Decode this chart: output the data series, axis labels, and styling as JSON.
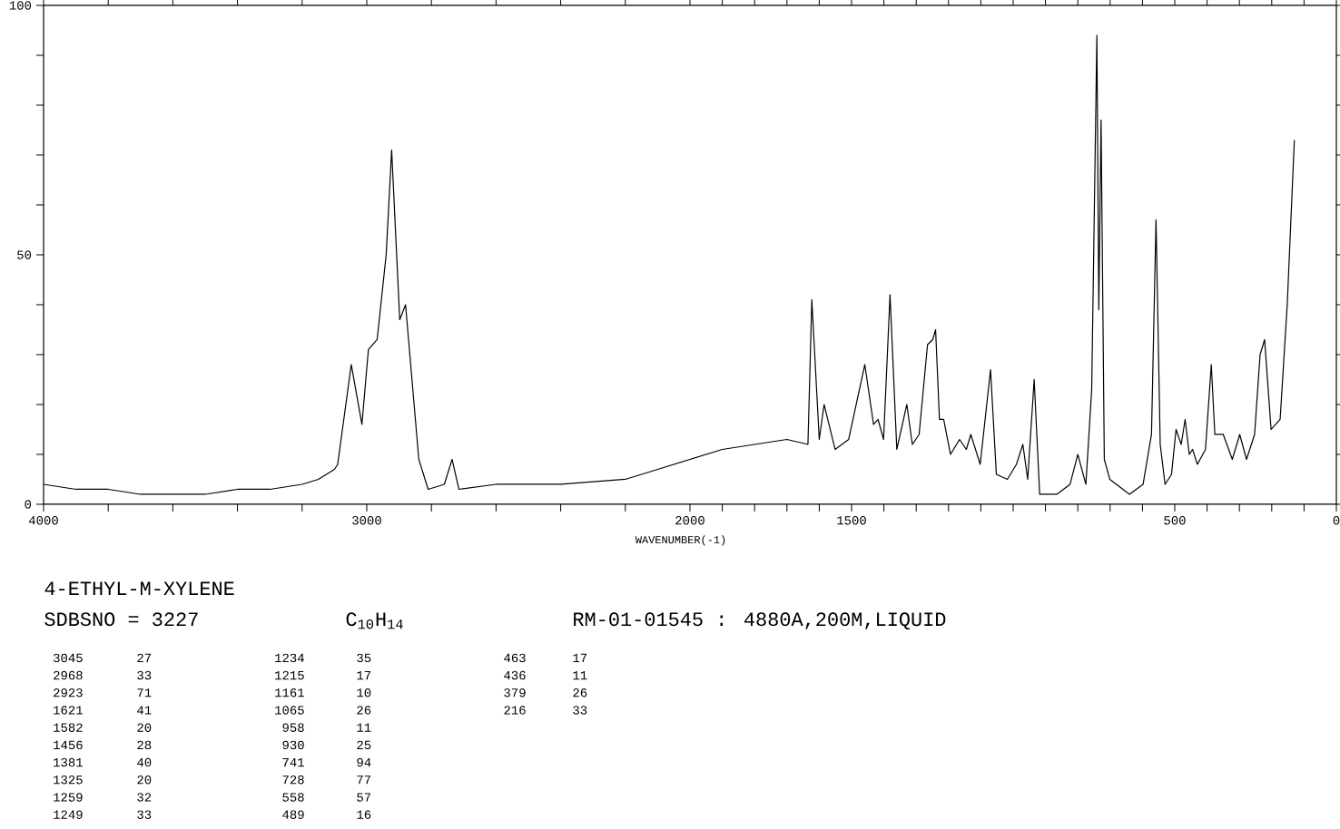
{
  "chart_data": {
    "type": "line",
    "title": "4-ETHYL-M-XYLENE",
    "subtitle": "SDBSNO = 3227",
    "xlabel": "WAVENUMBER(-1)",
    "annotations": [
      "C$_{10}$H$_{14}$",
      "RM-01-01545 : 4880A,200M,LIQUID",
      "3045",
      "27",
      "2968",
      "33",
      "2923",
      "71",
      "1621",
      "41",
      "1582",
      "20",
      "1456",
      "28",
      "1381",
      "40",
      "1325",
      "20",
      "1259",
      "32",
      "1249",
      "33",
      "1234",
      "35",
      "1215",
      "17",
      "1161",
      "10",
      "1065",
      "26",
      "958",
      "11",
      "930",
      "25",
      "741",
      "94",
      "728",
      "77",
      "558",
      "57",
      "489",
      "16",
      "463",
      "17",
      "436",
      "11",
      "379",
      "26",
      "216",
      "33"
    ],
    "color": "#000000",
    "x": [
      4000,
      3900,
      3800,
      3700,
      3600,
      3500,
      3400,
      3300,
      3200,
      3150,
      3100,
      3090,
      3048,
      3015,
      2995,
      2968,
      2940,
      2923,
      2898,
      2880,
      2839,
      2810,
      2760,
      2736,
      2715,
      2600,
      2400,
      2200,
      2100,
      2000,
      1900,
      1800,
      1700,
      1635,
      1623,
      1600,
      1585,
      1551,
      1509,
      1459,
      1432,
      1418,
      1401,
      1381,
      1360,
      1329,
      1312,
      1291,
      1265,
      1249,
      1240,
      1228,
      1215,
      1194,
      1166,
      1145,
      1131,
      1102,
      1070,
      1052,
      1018,
      990,
      970,
      955,
      935,
      918,
      865,
      824,
      800,
      775,
      757,
      741,
      735,
      728,
      718,
      701,
      640,
      598,
      572,
      558,
      545,
      530,
      510,
      496,
      480,
      468,
      455,
      445,
      430,
      405,
      387,
      376,
      350,
      322,
      299,
      278,
      253,
      236,
      222,
      202,
      174,
      152,
      130
    ],
    "values": [
      4,
      3,
      3,
      2,
      2,
      2,
      3,
      3,
      4,
      5,
      7,
      8,
      28,
      16,
      31,
      33,
      50,
      71,
      37,
      40,
      9,
      3,
      4,
      9,
      3,
      4,
      4,
      5,
      7,
      9,
      11,
      12,
      13,
      12,
      41,
      13,
      20,
      11,
      13,
      28,
      16,
      17,
      13,
      42,
      11,
      20,
      12,
      14,
      32,
      33,
      35,
      17,
      17,
      10,
      13,
      11,
      14,
      8,
      27,
      6,
      5,
      8,
      12,
      5,
      25,
      2,
      2,
      4,
      10,
      4,
      23,
      94,
      39,
      77,
      9,
      5,
      2,
      4,
      14,
      57,
      12,
      4,
      6,
      15,
      12,
      17,
      10,
      11,
      8,
      11,
      28,
      14,
      14,
      9,
      14,
      9,
      14,
      30,
      33,
      15,
      17,
      40,
      73
    ],
    "xlim": [
      4000,
      0
    ],
    "ylim": [
      0,
      100
    ],
    "xticks": [
      4000,
      {
        "value": 3800,
        "label": null
      },
      {
        "value": 3600,
        "label": null
      },
      {
        "value": 3400,
        "label": null
      },
      {
        "value": 3200,
        "label": null
      },
      3000,
      {
        "value": 2800,
        "label": null
      },
      {
        "value": 2600,
        "label": null
      },
      {
        "value": 2400,
        "label": null
      },
      {
        "value": 2200,
        "label": null
      },
      2000,
      {
        "value": 1900,
        "label": null
      },
      {
        "value": 1800,
        "label": null
      },
      {
        "value": 1700,
        "label": null
      },
      {
        "value": 1600,
        "label": null
      },
      1500,
      {
        "value": 1400,
        "label": null
      },
      {
        "value": 1300,
        "label": null
      },
      {
        "value": 1200,
        "label": null
      },
      {
        "value": 1100,
        "label": null
      },
      {
        "value": 1000,
        "label": null
      },
      {
        "value": 900,
        "label": null
      },
      {
        "value": 800,
        "label": null
      },
      {
        "value": 700,
        "label": null
      },
      {
        "value": 600,
        "label": null
      },
      500,
      {
        "value": 400,
        "label": null
      },
      {
        "value": 300,
        "label": null
      },
      {
        "value": 200,
        "label": null
      },
      {
        "value": 100,
        "label": null
      },
      0
    ],
    "yticks": [
      0,
      {
        "value": 10,
        "label": null
      },
      {
        "value": 20,
        "label": null
      },
      {
        "value": 30,
        "label": null
      },
      {
        "value": 40,
        "label": null
      },
      50,
      {
        "value": 60,
        "label": null
      },
      {
        "value": 70,
        "label": null
      },
      {
        "value": 80,
        "label": null
      },
      {
        "value": 90,
        "label": null
      },
      100
    ]
  }
}
